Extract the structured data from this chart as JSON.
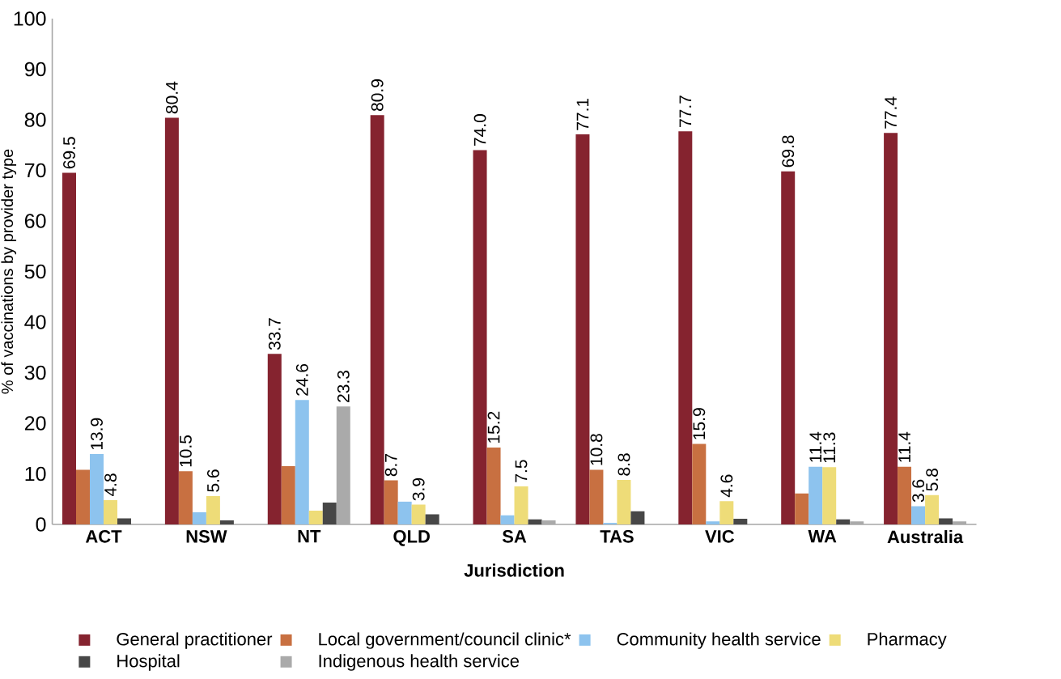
{
  "chart_data": {
    "type": "bar",
    "categories": [
      "ACT",
      "NSW",
      "NT",
      "QLD",
      "SA",
      "TAS",
      "VIC",
      "WA",
      "Australia"
    ],
    "xlabel": "Jurisdiction",
    "ylabel": "% of vaccinations by provider type",
    "ylim": [
      0,
      100
    ],
    "yticks": [
      0,
      10,
      20,
      30,
      40,
      50,
      60,
      70,
      80,
      90,
      100
    ],
    "legend": "bottom",
    "series": [
      {
        "name": "General practitioner",
        "color": "#85232f",
        "values": [
          69.5,
          80.4,
          33.7,
          80.9,
          74.0,
          77.1,
          77.7,
          69.8,
          77.4
        ],
        "value_labels": [
          "69.5",
          "80.4",
          "33.7",
          "80.9",
          "74.0",
          "77.1",
          "77.7",
          "69.8",
          "77.4"
        ]
      },
      {
        "name": "Local government/council clinic*",
        "color": "#c87041",
        "values": [
          10.8,
          10.5,
          11.5,
          8.7,
          15.2,
          10.8,
          15.9,
          6.1,
          11.4
        ],
        "value_labels": [
          null,
          "10.5",
          null,
          "8.7",
          "15.2",
          "10.8",
          "15.9",
          null,
          "11.4"
        ]
      },
      {
        "name": "Community health service",
        "color": "#8dc3ee",
        "values": [
          13.9,
          2.4,
          24.6,
          4.5,
          1.8,
          0.3,
          0.6,
          11.4,
          3.6
        ],
        "value_labels": [
          "13.9",
          null,
          "24.6",
          null,
          null,
          null,
          null,
          "11.4",
          "3.6"
        ]
      },
      {
        "name": "Pharmacy",
        "color": "#eedc78",
        "values": [
          4.8,
          5.6,
          2.7,
          3.9,
          7.5,
          8.8,
          4.6,
          11.3,
          5.8
        ],
        "value_labels": [
          "4.8",
          "5.6",
          null,
          "3.9",
          "7.5",
          "8.8",
          "4.6",
          "11.3",
          "5.8"
        ]
      },
      {
        "name": "Hospital",
        "color": "#474747",
        "values": [
          1.2,
          0.8,
          4.3,
          2.0,
          1.0,
          2.6,
          1.1,
          1.0,
          1.2
        ]
      },
      {
        "name": "Indigenous health service",
        "color": "#aaaaaa",
        "values": [
          0.0,
          null,
          23.3,
          null,
          0.8,
          null,
          null,
          0.6,
          0.6
        ],
        "value_labels": [
          null,
          null,
          "23.3",
          null,
          null,
          null,
          null,
          null,
          null
        ]
      }
    ]
  }
}
